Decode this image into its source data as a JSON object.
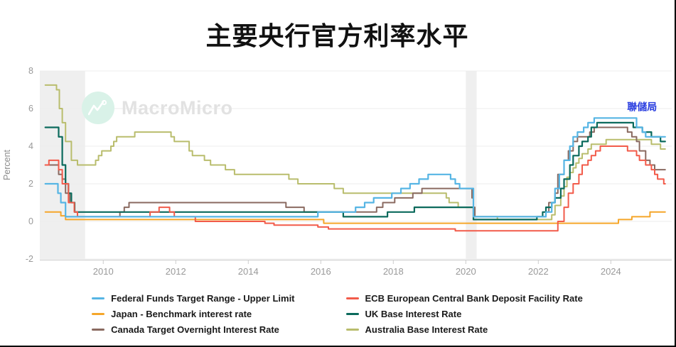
{
  "title": "主要央行官方利率水平",
  "watermark": {
    "brand": "MacroMicro"
  },
  "annotation": {
    "text": "聯儲局",
    "color": "#2b3fe0",
    "year": 2024.45,
    "value": 5.9
  },
  "legend": {
    "items": [
      {
        "series": "fed",
        "label": "Federal Funds Target Range - Upper Limit",
        "color": "#56b5e4"
      },
      {
        "series": "ecb",
        "label": "ECB European Central Bank Deposit Facility Rate",
        "color": "#f25b4a"
      },
      {
        "series": "japan",
        "label": "Japan - Benchmark interest rate",
        "color": "#f5a62a"
      },
      {
        "series": "uk",
        "label": "UK Base Interest Rate",
        "color": "#0b6a5c"
      },
      {
        "series": "canada",
        "label": "Canada Target Overnight Interest Rate",
        "color": "#8a6a60"
      },
      {
        "series": "australia",
        "label": "Australia Base Interest Rate",
        "color": "#b9bd6d"
      }
    ]
  },
  "chart_data": {
    "type": "line",
    "step": true,
    "title": "主要央行官方利率水平",
    "xlabel": "",
    "ylabel": "Percent",
    "xlim": [
      2008.25,
      2025.68
    ],
    "ylim": [
      -2,
      8
    ],
    "x_ticks": [
      2010,
      2012,
      2014,
      2016,
      2018,
      2020,
      2022,
      2024
    ],
    "y_ticks": [
      -2,
      0,
      2,
      4,
      6,
      8
    ],
    "grid": true,
    "legend_position": "bottom",
    "recession_bands": [
      [
        2008.25,
        2009.5
      ],
      [
        2020.0,
        2020.3
      ]
    ],
    "series": [
      {
        "name": "australia",
        "color": "#b9bd6d",
        "width": 2,
        "points": [
          [
            2008.4,
            7.25
          ],
          [
            2008.71,
            7.0
          ],
          [
            2008.79,
            6.0
          ],
          [
            2008.87,
            5.25
          ],
          [
            2008.96,
            4.25
          ],
          [
            2009.12,
            3.25
          ],
          [
            2009.29,
            3.0
          ],
          [
            2009.79,
            3.25
          ],
          [
            2009.87,
            3.5
          ],
          [
            2009.96,
            3.75
          ],
          [
            2010.21,
            4.0
          ],
          [
            2010.29,
            4.25
          ],
          [
            2010.37,
            4.5
          ],
          [
            2010.87,
            4.75
          ],
          [
            2011.87,
            4.5
          ],
          [
            2011.96,
            4.25
          ],
          [
            2012.37,
            3.75
          ],
          [
            2012.46,
            3.5
          ],
          [
            2012.79,
            3.25
          ],
          [
            2012.96,
            3.0
          ],
          [
            2013.37,
            2.75
          ],
          [
            2013.62,
            2.5
          ],
          [
            2015.12,
            2.25
          ],
          [
            2015.37,
            2.0
          ],
          [
            2016.37,
            1.75
          ],
          [
            2016.62,
            1.5
          ],
          [
            2019.46,
            1.25
          ],
          [
            2019.54,
            1.0
          ],
          [
            2019.79,
            0.75
          ],
          [
            2020.21,
            0.25
          ],
          [
            2020.87,
            0.1
          ],
          [
            2022.37,
            0.35
          ],
          [
            2022.46,
            0.85
          ],
          [
            2022.62,
            1.35
          ],
          [
            2022.71,
            1.85
          ],
          [
            2022.79,
            2.35
          ],
          [
            2022.87,
            2.6
          ],
          [
            2022.96,
            2.85
          ],
          [
            2023.04,
            3.1
          ],
          [
            2023.12,
            3.35
          ],
          [
            2023.21,
            3.6
          ],
          [
            2023.37,
            3.85
          ],
          [
            2023.46,
            4.1
          ],
          [
            2023.87,
            4.35
          ],
          [
            2025.12,
            4.1
          ],
          [
            2025.37,
            3.85
          ],
          [
            2025.5,
            3.85
          ]
        ]
      },
      {
        "name": "canada",
        "color": "#8a6a60",
        "width": 2,
        "points": [
          [
            2008.4,
            3.0
          ],
          [
            2008.77,
            2.5
          ],
          [
            2008.87,
            2.25
          ],
          [
            2008.96,
            1.5
          ],
          [
            2009.08,
            1.0
          ],
          [
            2009.21,
            0.5
          ],
          [
            2009.29,
            0.25
          ],
          [
            2010.46,
            0.5
          ],
          [
            2010.58,
            0.75
          ],
          [
            2010.71,
            1.0
          ],
          [
            2015.04,
            0.75
          ],
          [
            2015.54,
            0.5
          ],
          [
            2017.54,
            0.75
          ],
          [
            2017.71,
            1.0
          ],
          [
            2018.04,
            1.25
          ],
          [
            2018.54,
            1.5
          ],
          [
            2018.79,
            1.75
          ],
          [
            2020.17,
            1.25
          ],
          [
            2020.21,
            0.75
          ],
          [
            2020.25,
            0.25
          ],
          [
            2022.21,
            0.5
          ],
          [
            2022.29,
            1.0
          ],
          [
            2022.46,
            1.5
          ],
          [
            2022.54,
            2.5
          ],
          [
            2022.71,
            3.25
          ],
          [
            2022.83,
            3.75
          ],
          [
            2022.96,
            4.25
          ],
          [
            2023.08,
            4.5
          ],
          [
            2023.42,
            4.75
          ],
          [
            2023.54,
            5.0
          ],
          [
            2024.46,
            4.75
          ],
          [
            2024.58,
            4.5
          ],
          [
            2024.71,
            4.25
          ],
          [
            2024.79,
            3.75
          ],
          [
            2024.96,
            3.25
          ],
          [
            2025.08,
            3.0
          ],
          [
            2025.21,
            2.75
          ],
          [
            2025.5,
            2.75
          ]
        ]
      },
      {
        "name": "uk",
        "color": "#0b6a5c",
        "width": 2.2,
        "points": [
          [
            2008.4,
            5.0
          ],
          [
            2008.77,
            4.5
          ],
          [
            2008.87,
            3.0
          ],
          [
            2008.96,
            2.0
          ],
          [
            2009.04,
            1.5
          ],
          [
            2009.12,
            1.0
          ],
          [
            2009.21,
            0.5
          ],
          [
            2016.62,
            0.25
          ],
          [
            2017.84,
            0.5
          ],
          [
            2018.58,
            0.75
          ],
          [
            2020.21,
            0.1
          ],
          [
            2021.96,
            0.25
          ],
          [
            2022.12,
            0.5
          ],
          [
            2022.21,
            0.75
          ],
          [
            2022.37,
            1.0
          ],
          [
            2022.46,
            1.25
          ],
          [
            2022.62,
            1.75
          ],
          [
            2022.71,
            2.25
          ],
          [
            2022.87,
            3.0
          ],
          [
            2022.96,
            3.5
          ],
          [
            2023.12,
            4.0
          ],
          [
            2023.21,
            4.25
          ],
          [
            2023.37,
            4.5
          ],
          [
            2023.46,
            5.0
          ],
          [
            2023.62,
            5.25
          ],
          [
            2024.62,
            5.0
          ],
          [
            2024.87,
            4.75
          ],
          [
            2025.12,
            4.5
          ],
          [
            2025.37,
            4.25
          ],
          [
            2025.5,
            4.25
          ]
        ]
      },
      {
        "name": "japan",
        "color": "#f5a62a",
        "width": 2,
        "points": [
          [
            2008.4,
            0.5
          ],
          [
            2008.83,
            0.3
          ],
          [
            2008.96,
            0.1
          ],
          [
            2016.08,
            -0.1
          ],
          [
            2024.21,
            0.1
          ],
          [
            2024.58,
            0.25
          ],
          [
            2025.08,
            0.5
          ],
          [
            2025.5,
            0.5
          ]
        ]
      },
      {
        "name": "ecb",
        "color": "#f25b4a",
        "width": 2,
        "points": [
          [
            2008.4,
            3.0
          ],
          [
            2008.5,
            3.25
          ],
          [
            2008.77,
            2.75
          ],
          [
            2008.87,
            2.0
          ],
          [
            2009.04,
            1.0
          ],
          [
            2009.2,
            0.5
          ],
          [
            2009.29,
            0.25
          ],
          [
            2011.29,
            0.5
          ],
          [
            2011.54,
            0.75
          ],
          [
            2011.83,
            0.5
          ],
          [
            2011.96,
            0.25
          ],
          [
            2012.54,
            0.0
          ],
          [
            2014.46,
            -0.1
          ],
          [
            2014.71,
            -0.2
          ],
          [
            2015.92,
            -0.3
          ],
          [
            2016.21,
            -0.4
          ],
          [
            2019.71,
            -0.5
          ],
          [
            2022.54,
            0.0
          ],
          [
            2022.71,
            0.75
          ],
          [
            2022.83,
            1.5
          ],
          [
            2022.96,
            2.0
          ],
          [
            2023.12,
            2.5
          ],
          [
            2023.21,
            3.0
          ],
          [
            2023.37,
            3.25
          ],
          [
            2023.46,
            3.5
          ],
          [
            2023.58,
            3.75
          ],
          [
            2023.71,
            4.0
          ],
          [
            2024.46,
            3.75
          ],
          [
            2024.71,
            3.5
          ],
          [
            2024.79,
            3.25
          ],
          [
            2024.96,
            3.0
          ],
          [
            2025.12,
            2.75
          ],
          [
            2025.21,
            2.5
          ],
          [
            2025.29,
            2.25
          ],
          [
            2025.46,
            2.0
          ],
          [
            2025.5,
            2.0
          ]
        ]
      },
      {
        "name": "fed",
        "color": "#56b5e4",
        "width": 2.2,
        "points": [
          [
            2008.4,
            2.0
          ],
          [
            2008.75,
            1.5
          ],
          [
            2008.83,
            1.0
          ],
          [
            2008.96,
            0.25
          ],
          [
            2015.92,
            0.5
          ],
          [
            2016.96,
            0.75
          ],
          [
            2017.21,
            1.0
          ],
          [
            2017.46,
            1.25
          ],
          [
            2017.96,
            1.5
          ],
          [
            2018.21,
            1.75
          ],
          [
            2018.46,
            2.0
          ],
          [
            2018.71,
            2.25
          ],
          [
            2018.96,
            2.5
          ],
          [
            2019.58,
            2.25
          ],
          [
            2019.71,
            2.0
          ],
          [
            2019.83,
            1.75
          ],
          [
            2020.21,
            0.25
          ],
          [
            2022.21,
            0.5
          ],
          [
            2022.37,
            1.0
          ],
          [
            2022.46,
            1.75
          ],
          [
            2022.58,
            2.5
          ],
          [
            2022.71,
            3.25
          ],
          [
            2022.87,
            4.0
          ],
          [
            2022.96,
            4.5
          ],
          [
            2023.08,
            4.75
          ],
          [
            2023.25,
            5.0
          ],
          [
            2023.37,
            5.25
          ],
          [
            2023.54,
            5.5
          ],
          [
            2024.71,
            5.0
          ],
          [
            2024.87,
            4.75
          ],
          [
            2024.96,
            4.5
          ],
          [
            2025.5,
            4.5
          ]
        ]
      }
    ]
  },
  "style": {
    "grid_color": "#ececec",
    "axis_line_color": "#cccccc",
    "tick_label_color": "#999999",
    "band_color": "#efefef",
    "watermark_circle": "#d9f2e8",
    "watermark_text": "#e2e2e2"
  }
}
